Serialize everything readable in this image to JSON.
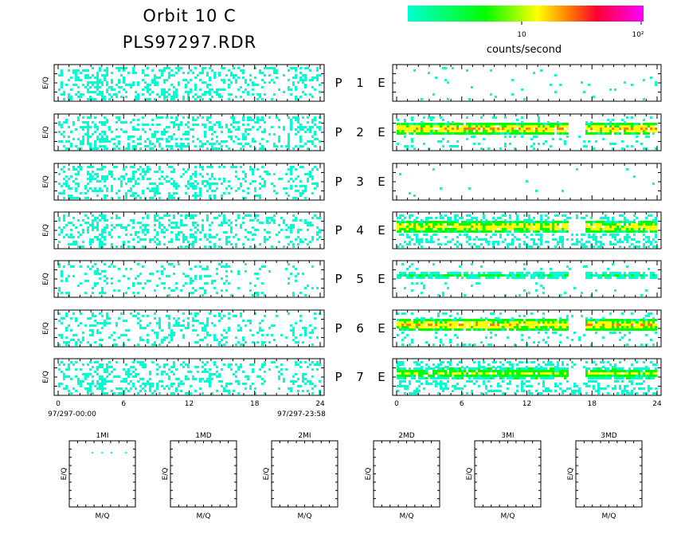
{
  "title": {
    "line1": "Orbit 10 C",
    "line2": "PLS97297.RDR"
  },
  "colorbar": {
    "label": "counts/second",
    "tick_10": "10",
    "tick_100": "10²",
    "colors": [
      "#00ffd0",
      "#00ff00",
      "#ffff00",
      "#ff8000",
      "#ff0030",
      "#ff00ff"
    ]
  },
  "panels": {
    "ylabel": "E/Q",
    "rows": [
      {
        "label": "P 1 E",
        "p": "P",
        "num": "1",
        "e": "E"
      },
      {
        "label": "P 2 E",
        "p": "P",
        "num": "2",
        "e": "E"
      },
      {
        "label": "P 3 E",
        "p": "P",
        "num": "3",
        "e": "E"
      },
      {
        "label": "P 4 E",
        "p": "P",
        "num": "4",
        "e": "E"
      },
      {
        "label": "P 5 E",
        "p": "P",
        "num": "5",
        "e": "E"
      },
      {
        "label": "P 6 E",
        "p": "P",
        "num": "6",
        "e": "E"
      },
      {
        "label": "P 7 E",
        "p": "P",
        "num": "7",
        "e": "E"
      }
    ],
    "xticks": [
      "0",
      "6",
      "12",
      "18",
      "24"
    ],
    "start_time": "97/297-00:00",
    "end_time": "97/297-23:58"
  },
  "mq_panels": {
    "ylabel": "E/Q",
    "xlabel": "M/Q",
    "titles": [
      "1MI",
      "1MD",
      "2MI",
      "2MD",
      "3MI",
      "3MD"
    ]
  },
  "chart_data": {
    "type": "heatmap",
    "title": "Orbit 10 C",
    "subtitle": "PLS97297.RDR",
    "x_range_hours": [
      0,
      24
    ],
    "colorbar_units": "counts/second",
    "colorbar_scale": "log",
    "colorbar_range": [
      1,
      100
    ],
    "left_column": {
      "ylabel": "E/Q",
      "description_per_row": [
        {
          "row": "P 1",
          "density": 0.28,
          "level": 1.0
        },
        {
          "row": "P 2",
          "density": 0.3,
          "level": 1.0
        },
        {
          "row": "P 3",
          "density": 0.27,
          "level": 1.0
        },
        {
          "row": "P 4",
          "density": 0.26,
          "level": 1.0
        },
        {
          "row": "P 5",
          "density": 0.14,
          "level": 1.0
        },
        {
          "row": "P 6",
          "density": 0.2,
          "level": 1.0
        },
        {
          "row": "P 7",
          "density": 0.25,
          "level": 1.0
        }
      ]
    },
    "right_column": {
      "rows": [
        {
          "row": "P 1",
          "band_level": 0.0,
          "sparse": 0.02
        },
        {
          "row": "P 2",
          "band_level": 10.0,
          "sparse": 0.12
        },
        {
          "row": "P 3",
          "band_level": 0.0,
          "sparse": 0.01
        },
        {
          "row": "P 4",
          "band_level": 8.0,
          "sparse": 0.35
        },
        {
          "row": "P 5",
          "band_level": 2.0,
          "sparse": 0.05
        },
        {
          "row": "P 6",
          "band_level": 10.0,
          "sparse": 0.12
        },
        {
          "row": "P 7",
          "band_level": 5.0,
          "sparse": 0.3
        }
      ]
    },
    "mq_panels": [
      "1MI",
      "1MD",
      "2MI",
      "2MD",
      "3MI",
      "3MD"
    ]
  }
}
